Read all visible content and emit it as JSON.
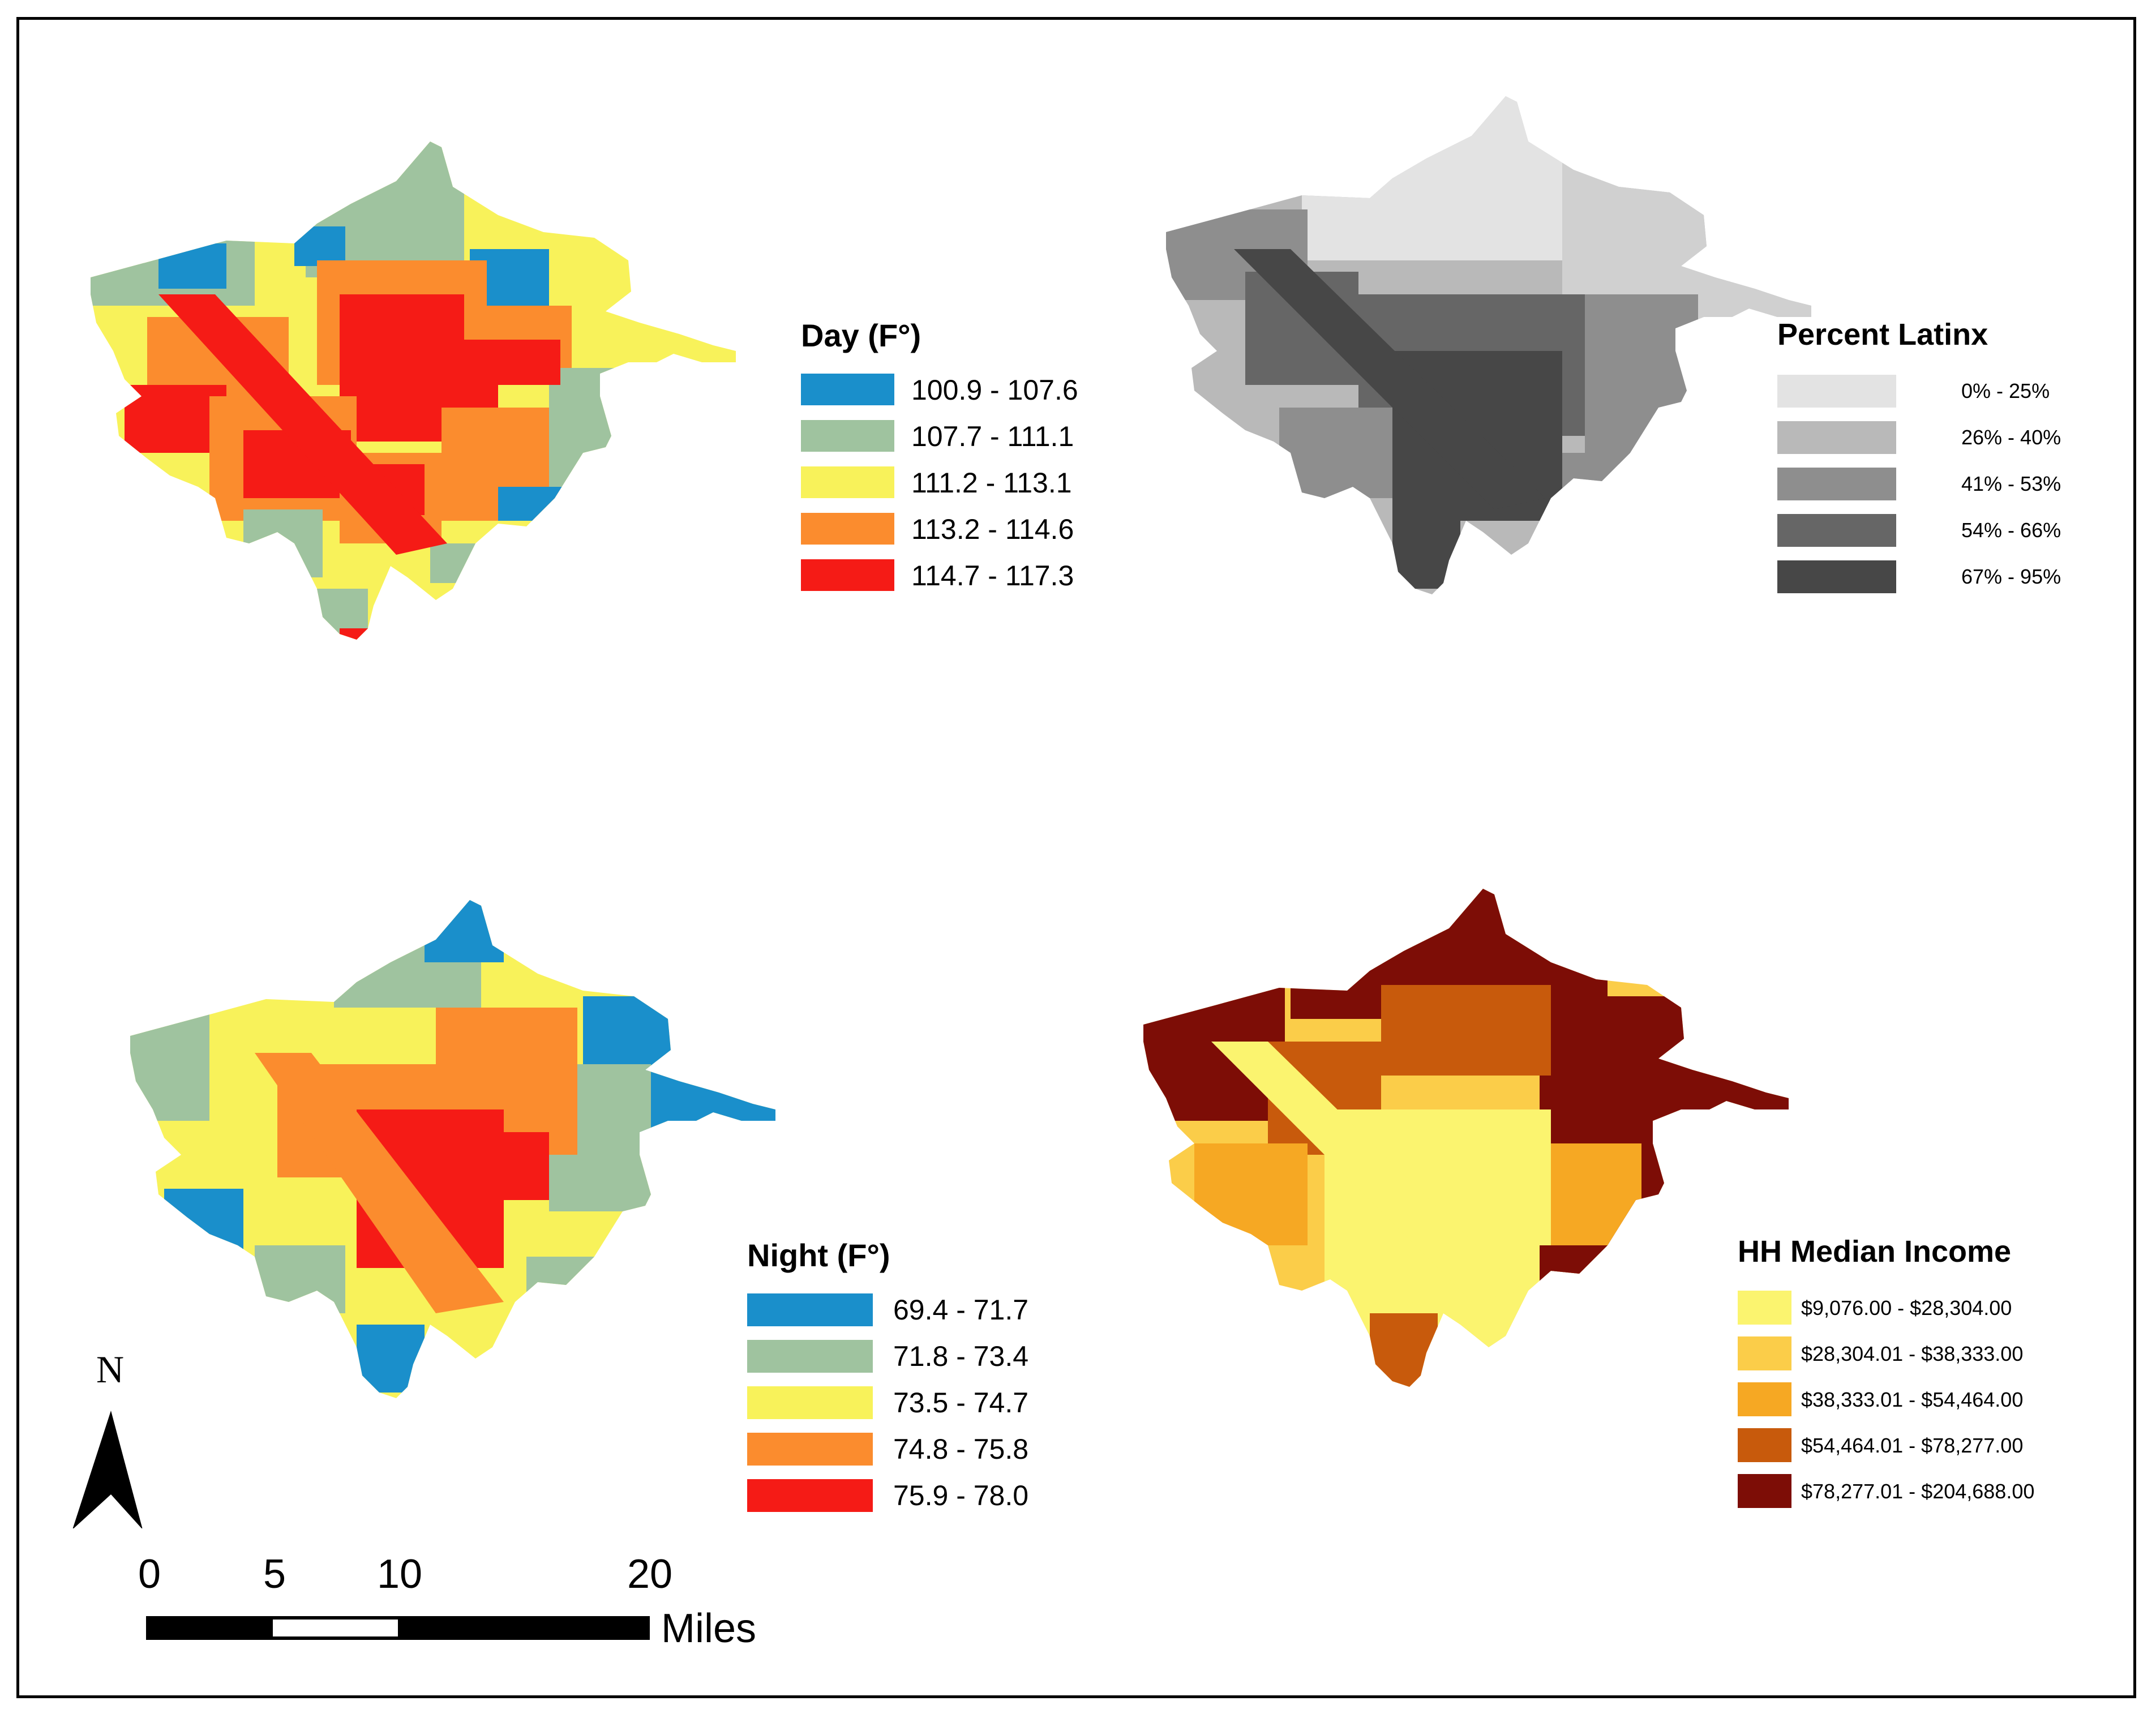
{
  "panels": {
    "day": {
      "legend_title": "Day (F°)",
      "classes": [
        {
          "label": "100.9 - 107.6",
          "color": "#1a8fcb"
        },
        {
          "label": "107.7 - 111.1",
          "color": "#9fc39f"
        },
        {
          "label": "111.2 - 113.1",
          "color": "#f8f25a"
        },
        {
          "label": "113.2 - 114.6",
          "color": "#fb8c2e"
        },
        {
          "label": "114.7 - 117.3",
          "color": "#f51b16"
        }
      ]
    },
    "latinx": {
      "legend_title": "Percent Latinx",
      "classes": [
        {
          "label": "0% - 25%",
          "color": "#e3e3e3"
        },
        {
          "label": "26% - 40%",
          "color": "#b9b9b9"
        },
        {
          "label": "41% - 53%",
          "color": "#8e8e8e"
        },
        {
          "label": "54% - 66%",
          "color": "#666666"
        },
        {
          "label": "67% - 95%",
          "color": "#474747"
        }
      ]
    },
    "night": {
      "legend_title": "Night (F°)",
      "classes": [
        {
          "label": "69.4 - 71.7",
          "color": "#1a8fcb"
        },
        {
          "label": "71.8 - 73.4",
          "color": "#9fc39f"
        },
        {
          "label": "73.5 - 74.7",
          "color": "#f8f25a"
        },
        {
          "label": "74.8 - 75.8",
          "color": "#fb8c2e"
        },
        {
          "label": "75.9 - 78.0",
          "color": "#f51b16"
        }
      ]
    },
    "income": {
      "legend_title": "HH Median Income",
      "classes": [
        {
          "label": "$9,076.00 - $28,304.00",
          "color": "#fbf46f"
        },
        {
          "label": "$28,304.01 - $38,333.00",
          "color": "#fbcd49"
        },
        {
          "label": "$38,333.01 - $54,464.00",
          "color": "#f6a823"
        },
        {
          "label": "$54,464.01 - $78,277.00",
          "color": "#c85a0c"
        },
        {
          "label": "$78,277.01 - $204,688.00",
          "color": "#7d0d06"
        }
      ]
    }
  },
  "north_arrow": {
    "label": "N"
  },
  "scale_bar": {
    "ticks": [
      "0",
      "5",
      "10",
      "20"
    ],
    "tick_values": [
      0,
      5,
      10,
      20
    ],
    "unit": "Miles"
  }
}
